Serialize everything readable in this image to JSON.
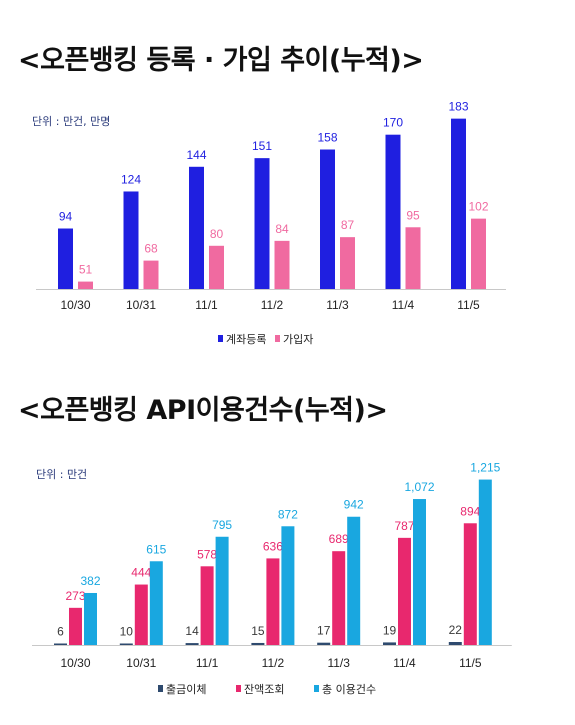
{
  "chart_data": [
    {
      "type": "bar",
      "title": "<오픈뱅킹 등록 · 가입 추이(누적)>",
      "unit_note": "단위 : 만건, 만명",
      "categories": [
        "10/30",
        "10/31",
        "11/1",
        "11/2",
        "11/3",
        "11/4",
        "11/5"
      ],
      "series": [
        {
          "name": "계좌등록",
          "values": [
            94,
            124,
            144,
            151,
            158,
            170,
            183
          ],
          "color": "#1f1fe0"
        },
        {
          "name": "가입자",
          "values": [
            51,
            68,
            80,
            84,
            87,
            95,
            102
          ],
          "color": "#f06aa0"
        }
      ],
      "ylim": [
        45,
        190
      ],
      "grid": false,
      "legend_position": "bottom-center"
    },
    {
      "type": "bar",
      "title": "<오픈뱅킹 API이용건수(누적)>",
      "unit_note": "단위 : 만건",
      "categories": [
        "10/30",
        "10/31",
        "11/1",
        "11/2",
        "11/3",
        "11/4",
        "11/5"
      ],
      "series": [
        {
          "name": "출금이체",
          "values": [
            6,
            10,
            14,
            15,
            17,
            19,
            22
          ],
          "labels": [
            "6",
            "10",
            "14",
            "15",
            "17",
            "19",
            "22"
          ],
          "color": "#2e4a6e"
        },
        {
          "name": "잔액조회",
          "values": [
            273,
            444,
            578,
            636,
            689,
            787,
            894
          ],
          "labels": [
            "273",
            "444",
            "578",
            "636",
            "689",
            "787",
            "894"
          ],
          "color": "#e8286e"
        },
        {
          "name": "총 이용건수",
          "values": [
            382,
            615,
            795,
            872,
            942,
            1072,
            1215
          ],
          "labels": [
            "382",
            "615",
            "795",
            "872",
            "942",
            "1,072",
            "1,215"
          ],
          "color": "#19a7e0"
        }
      ],
      "ylim": [
        0,
        1300
      ],
      "grid": false,
      "legend_position": "bottom-center"
    }
  ]
}
